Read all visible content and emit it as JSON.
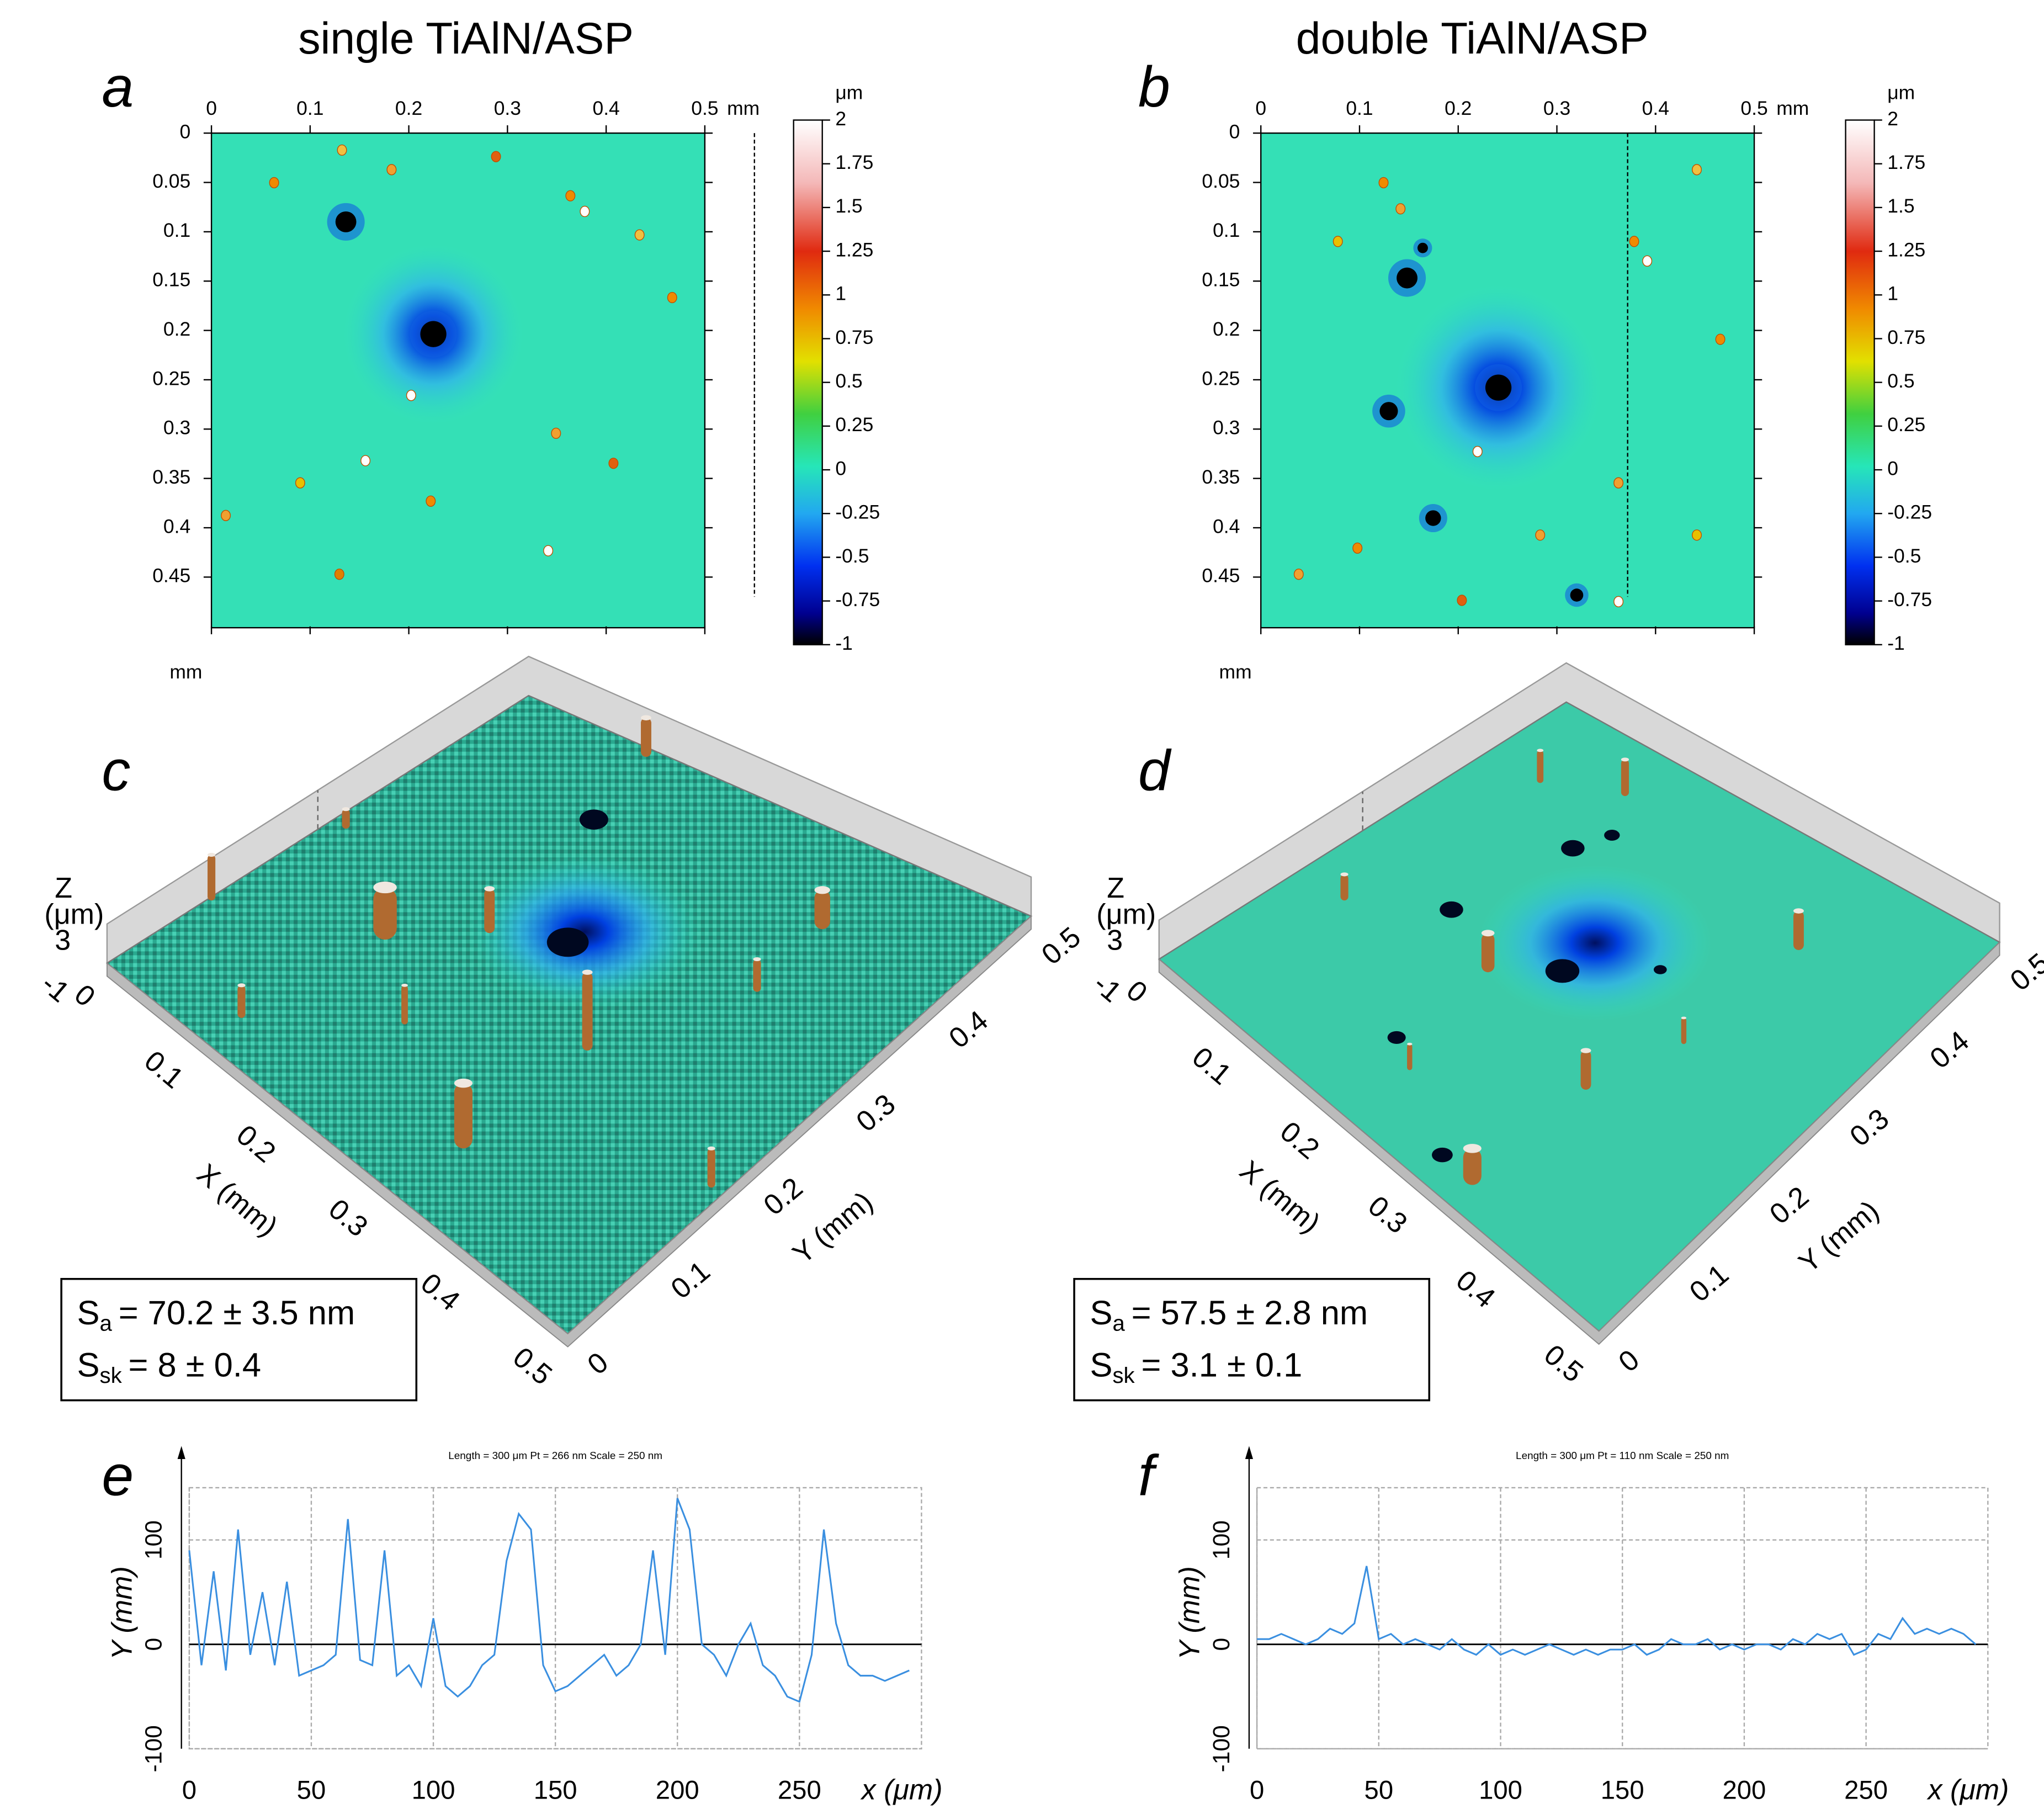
{
  "maps": [
    {
      "letter": "a",
      "title": "single TiAlN/ASP",
      "xticks": [
        0,
        0.1,
        0.2,
        0.3,
        0.4,
        0.5
      ],
      "yticks": [
        0,
        0.05,
        0.1,
        0.15,
        0.2,
        0.25,
        0.3,
        0.35,
        0.4,
        0.45
      ],
      "x_unit": "mm",
      "y_unit": "mm",
      "colorbar": {
        "unit": "μm",
        "lim": [
          -1,
          2
        ],
        "ticks": [
          2,
          1.75,
          1.5,
          1.25,
          1,
          0.75,
          0.5,
          0.25,
          0,
          -0.25,
          -0.5,
          -0.75,
          -1
        ]
      }
    },
    {
      "letter": "b",
      "title": "double TiAlN/ASP",
      "xticks": [
        0,
        0.1,
        0.2,
        0.3,
        0.4,
        0.5
      ],
      "yticks": [
        0,
        0.05,
        0.1,
        0.15,
        0.2,
        0.25,
        0.3,
        0.35,
        0.4,
        0.45
      ],
      "x_unit": "mm",
      "y_unit": "mm",
      "colorbar": {
        "unit": "μm",
        "lim": [
          -1,
          2
        ],
        "ticks": [
          2,
          1.75,
          1.5,
          1.25,
          1,
          0.75,
          0.5,
          0.25,
          0,
          -0.25,
          -0.5,
          -0.75,
          -1
        ]
      }
    }
  ],
  "surfaces": [
    {
      "letter": "c",
      "z_label": [
        "Z",
        "(μm)"
      ],
      "z_ticks": [
        3,
        -1
      ],
      "x_label": "X (mm)",
      "x_ticks": [
        0,
        0.1,
        0.2,
        0.3,
        0.4,
        0.5
      ],
      "y_label": "Y (mm)",
      "y_ticks": [
        0,
        0.1,
        0.2,
        0.3,
        0.4,
        0.5
      ],
      "stats": [
        {
          "symbol": "S",
          "sub": "a",
          "text": "= 70.2 ± 3.5 nm"
        },
        {
          "symbol": "S",
          "sub": "sk",
          "text": "= 8 ± 0.4"
        }
      ]
    },
    {
      "letter": "d",
      "z_label": [
        "Z",
        "(μm)"
      ],
      "z_ticks": [
        3,
        -1
      ],
      "x_label": "X (mm)",
      "x_ticks": [
        0,
        0.1,
        0.2,
        0.3,
        0.4,
        0.5
      ],
      "y_label": "Y (mm)",
      "y_ticks": [
        0,
        0.1,
        0.2,
        0.3,
        0.4,
        0.5
      ],
      "stats": [
        {
          "symbol": "S",
          "sub": "a",
          "text": "= 57.5 ± 2.8 nm"
        },
        {
          "symbol": "S",
          "sub": "sk",
          "text": "= 3.1 ± 0.1"
        }
      ]
    }
  ],
  "chart_data": [
    {
      "type": "line",
      "letter": "e",
      "header": "Length = 300 μm  Pt = 266 nm  Scale = 250 nm",
      "xlabel": "x (μm)",
      "ylabel": "Y (mm)",
      "color": "#3a8fe0",
      "x": [
        0,
        5,
        10,
        15,
        20,
        25,
        30,
        35,
        40,
        45,
        50,
        55,
        60,
        65,
        70,
        75,
        80,
        85,
        90,
        95,
        100,
        105,
        110,
        115,
        120,
        125,
        130,
        135,
        140,
        145,
        150,
        155,
        160,
        165,
        170,
        175,
        180,
        185,
        190,
        195,
        200,
        205,
        210,
        215,
        220,
        225,
        230,
        235,
        240,
        245,
        250,
        255,
        260,
        265,
        270,
        275,
        280,
        285,
        290,
        295
      ],
      "values": [
        90,
        -20,
        70,
        -25,
        110,
        -10,
        50,
        -20,
        60,
        -30,
        -25,
        -20,
        -10,
        120,
        -15,
        -20,
        90,
        -30,
        -20,
        -40,
        25,
        -40,
        -50,
        -40,
        -20,
        -10,
        80,
        125,
        110,
        -20,
        -45,
        -40,
        -30,
        -20,
        -10,
        -30,
        -20,
        0,
        90,
        -10,
        140,
        110,
        0,
        -10,
        -30,
        0,
        20,
        -20,
        -30,
        -50,
        -55,
        -10,
        110,
        20,
        -20,
        -30,
        -30,
        -35,
        -30,
        -25
      ],
      "xlim": [
        0,
        300
      ],
      "ylim": [
        -100,
        150
      ],
      "xticks": [
        0,
        50,
        100,
        150,
        200,
        250
      ],
      "yticks": [
        -100,
        0,
        100
      ],
      "grid": true
    },
    {
      "type": "line",
      "letter": "f",
      "header": "Length = 300 μm  Pt = 110 nm  Scale = 250 nm",
      "xlabel": "x (μm)",
      "ylabel": "Y (mm)",
      "color": "#3a8fe0",
      "x": [
        0,
        5,
        10,
        15,
        20,
        25,
        30,
        35,
        40,
        45,
        50,
        55,
        60,
        65,
        70,
        75,
        80,
        85,
        90,
        95,
        100,
        105,
        110,
        115,
        120,
        125,
        130,
        135,
        140,
        145,
        150,
        155,
        160,
        165,
        170,
        175,
        180,
        185,
        190,
        195,
        200,
        205,
        210,
        215,
        220,
        225,
        230,
        235,
        240,
        245,
        250,
        255,
        260,
        265,
        270,
        275,
        280,
        285,
        290,
        295
      ],
      "values": [
        5,
        5,
        10,
        5,
        0,
        5,
        15,
        10,
        20,
        75,
        5,
        10,
        0,
        5,
        0,
        -5,
        5,
        -5,
        -10,
        0,
        -10,
        -5,
        -10,
        -5,
        0,
        -5,
        -10,
        -5,
        -10,
        -5,
        -5,
        0,
        -10,
        -5,
        5,
        0,
        0,
        5,
        -5,
        0,
        -5,
        0,
        0,
        -5,
        5,
        0,
        10,
        5,
        10,
        -10,
        -5,
        10,
        5,
        25,
        10,
        15,
        10,
        15,
        10,
        0
      ],
      "xlim": [
        0,
        300
      ],
      "ylim": [
        -100,
        150
      ],
      "xticks": [
        0,
        50,
        100,
        150,
        200,
        250
      ],
      "yticks": [
        -100,
        0,
        100
      ],
      "grid": true
    }
  ]
}
